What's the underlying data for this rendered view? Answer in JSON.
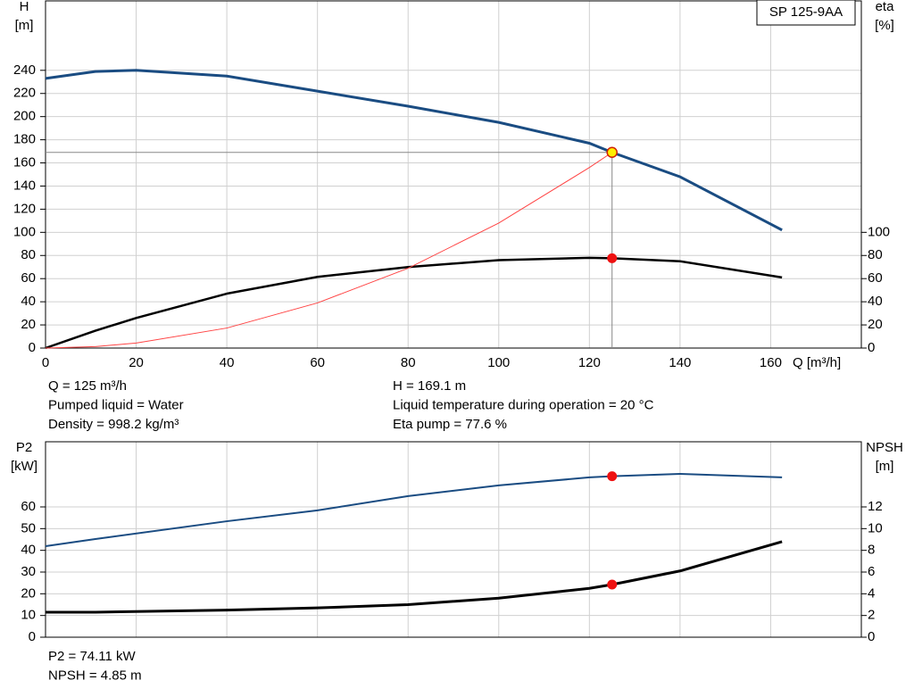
{
  "chart_data": [
    {
      "type": "line",
      "label_box": "SP 125-9AA",
      "ylabel": [
        "H",
        "[m]"
      ],
      "y2label": [
        "eta",
        "[%]"
      ],
      "xlabel": "Q [m³/h]",
      "x": [
        0,
        11,
        20,
        40,
        60,
        80,
        100,
        120,
        125,
        140,
        162.5
      ],
      "xlim": [
        0,
        180
      ],
      "xticks": [
        0,
        20,
        40,
        60,
        80,
        100,
        120,
        140,
        160
      ],
      "ylim": [
        0,
        300
      ],
      "yticks": [
        0,
        20,
        40,
        60,
        80,
        100,
        120,
        140,
        160,
        180,
        200,
        220,
        240
      ],
      "y2lim": [
        0,
        300
      ],
      "y2ticks": [
        0,
        20,
        40,
        60,
        80,
        100
      ],
      "grid": true,
      "duty_x": 125,
      "series": [
        {
          "color": "#1a4c82",
          "width": 3,
          "duty_color": "#ffee00",
          "values": [
            233,
            239,
            240,
            235,
            222,
            209,
            195,
            177,
            169.1,
            148,
            102
          ],
          "duty": 169.1
        },
        {
          "color": "#000000",
          "width": 2.5,
          "duty_color": "#ee1111",
          "axis": "y2",
          "values": [
            0,
            15,
            26,
            47,
            61.5,
            70,
            76,
            78,
            77.6,
            75,
            61
          ],
          "duty": 77.6
        },
        {
          "color": "#ff4444",
          "width": 1,
          "values": [
            0,
            1.3,
            4.3,
            17.3,
            39,
            69,
            108,
            156,
            169.1,
            null,
            null
          ]
        }
      ],
      "notes": [
        [
          "Q = 125 m³/h",
          "Pumped liquid = Water",
          "Density = 998.2 kg/m³"
        ],
        [
          "H = 169.1 m",
          "Liquid temperature during operation = 20 °C",
          "Eta pump = 77.6 %"
        ]
      ]
    },
    {
      "type": "line",
      "ylabel": [
        "P2",
        "[kW]"
      ],
      "y2label": [
        "NPSH",
        "[m]"
      ],
      "x": [
        0,
        11,
        40,
        60,
        80,
        100,
        120,
        125,
        140,
        162.5
      ],
      "xlim": [
        0,
        180
      ],
      "xticks": [
        0,
        20,
        40,
        60,
        80,
        100,
        120,
        140,
        160
      ],
      "ylim": [
        0,
        90
      ],
      "yticks": [
        0,
        10,
        20,
        30,
        40,
        50,
        60
      ],
      "y2lim": [
        0,
        18
      ],
      "y2ticks": [
        0,
        2,
        4,
        6,
        8,
        10,
        12
      ],
      "grid": true,
      "duty_x": 125,
      "series": [
        {
          "color": "#1a4c82",
          "width": 2,
          "duty_color": "#ee1111",
          "values": [
            41.9,
            45.2,
            53.4,
            58.4,
            65,
            69.9,
            73.6,
            74.11,
            75.2,
            73.6
          ],
          "duty": 74.11
        },
        {
          "color": "#000000",
          "width": 3,
          "duty_color": "#ee1111",
          "axis": "y2",
          "values": [
            2.3,
            2.3,
            2.5,
            2.7,
            3.0,
            3.6,
            4.5,
            4.85,
            6.1,
            8.8
          ],
          "duty": 4.85
        }
      ],
      "notes": [
        [
          "P2 = 74.11 kW",
          "NPSH = 4.85 m"
        ]
      ]
    }
  ]
}
